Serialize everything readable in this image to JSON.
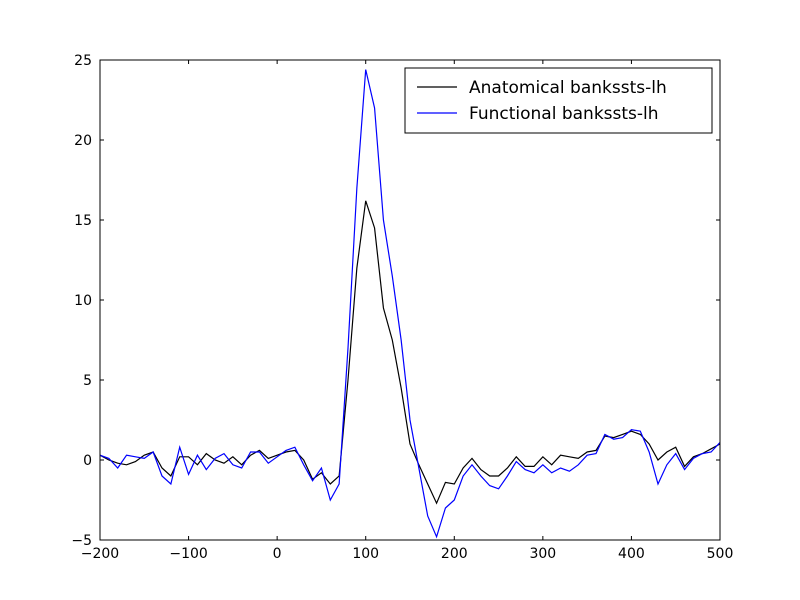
{
  "chart_data": {
    "type": "line",
    "x": [
      -200,
      -190,
      -180,
      -170,
      -160,
      -150,
      -140,
      -130,
      -120,
      -110,
      -100,
      -90,
      -80,
      -70,
      -60,
      -50,
      -40,
      -30,
      -20,
      -10,
      0,
      10,
      20,
      30,
      40,
      50,
      60,
      70,
      80,
      90,
      100,
      110,
      120,
      130,
      140,
      150,
      160,
      170,
      180,
      190,
      200,
      210,
      220,
      230,
      240,
      250,
      260,
      270,
      280,
      290,
      300,
      310,
      320,
      330,
      340,
      350,
      360,
      370,
      380,
      390,
      400,
      410,
      420,
      430,
      440,
      450,
      460,
      470,
      480,
      490,
      500
    ],
    "series": [
      {
        "name": "Anatomical bankssts-lh",
        "color": "#000000",
        "values": [
          0.3,
          0.0,
          -0.2,
          -0.3,
          -0.1,
          0.3,
          0.5,
          -0.5,
          -1.0,
          0.2,
          0.2,
          -0.3,
          0.4,
          0.0,
          -0.2,
          0.2,
          -0.3,
          0.3,
          0.6,
          0.1,
          0.3,
          0.5,
          0.6,
          0.0,
          -1.2,
          -0.8,
          -1.5,
          -1.0,
          5.0,
          12.0,
          16.2,
          14.5,
          9.5,
          7.5,
          4.5,
          1.0,
          -0.3,
          -1.5,
          -2.7,
          -1.4,
          -1.5,
          -0.5,
          0.1,
          -0.6,
          -1.0,
          -1.0,
          -0.5,
          0.2,
          -0.4,
          -0.4,
          0.2,
          -0.3,
          0.3,
          0.2,
          0.1,
          0.5,
          0.6,
          1.5,
          1.4,
          1.6,
          1.8,
          1.6,
          1.0,
          0.0,
          0.5,
          0.8,
          -0.4,
          0.2,
          0.4,
          0.7,
          1.0
        ]
      },
      {
        "name": "Functional bankssts-lh",
        "color": "#0000ff",
        "values": [
          0.3,
          0.1,
          -0.5,
          0.3,
          0.2,
          0.1,
          0.5,
          -1.0,
          -1.5,
          0.8,
          -0.9,
          0.3,
          -0.6,
          0.1,
          0.4,
          -0.3,
          -0.5,
          0.5,
          0.5,
          -0.2,
          0.2,
          0.6,
          0.8,
          -0.3,
          -1.3,
          -0.5,
          -2.5,
          -1.5,
          7.0,
          17.0,
          24.4,
          22.0,
          15.0,
          11.5,
          7.5,
          2.5,
          -0.5,
          -3.5,
          -4.8,
          -3.0,
          -2.5,
          -1.0,
          -0.3,
          -1.0,
          -1.6,
          -1.8,
          -1.0,
          -0.1,
          -0.6,
          -0.8,
          -0.3,
          -0.8,
          -0.5,
          -0.7,
          -0.3,
          0.3,
          0.4,
          1.6,
          1.3,
          1.4,
          1.9,
          1.8,
          0.5,
          -1.5,
          -0.3,
          0.4,
          -0.6,
          0.1,
          0.4,
          0.5,
          1.1
        ]
      }
    ],
    "xlim": [
      -200,
      500
    ],
    "xticks": [
      {
        "value": -200,
        "label": "−200"
      },
      {
        "value": -100,
        "label": "−100"
      },
      0,
      100,
      200,
      300,
      400,
      500
    ],
    "ylim": [
      -5,
      25
    ],
    "yticks": [
      {
        "value": -5,
        "label": "−5"
      },
      0,
      5,
      10,
      15,
      20,
      25
    ],
    "legend": "upper right"
  }
}
